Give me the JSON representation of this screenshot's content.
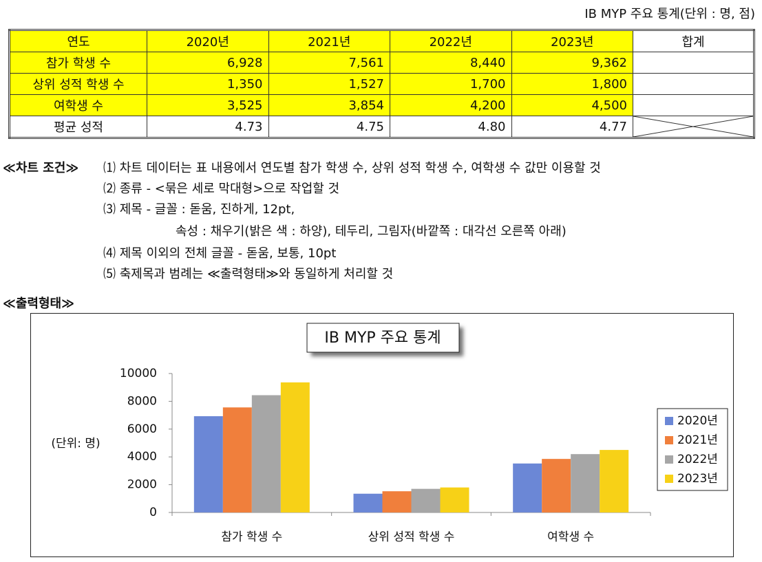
{
  "header": {
    "caption": "IB MYP 주요 통계(단위 : 명, 점)"
  },
  "table": {
    "header": [
      "연도",
      "2020년",
      "2021년",
      "2022년",
      "2023년",
      "합계"
    ],
    "rows": [
      [
        "참가 학생 수",
        "6,928",
        "7,561",
        "8,440",
        "9,362"
      ],
      [
        "상위 성적 학생 수",
        "1,350",
        "1,527",
        "1,700",
        "1,800"
      ],
      [
        "여학생 수",
        "3,525",
        "3,854",
        "4,200",
        "4,500"
      ],
      [
        "평균 성적",
        "4.73",
        "4.75",
        "4.80",
        "4.77"
      ]
    ]
  },
  "conditions": {
    "heading": "≪차트 조건≫",
    "lines": [
      "⑴ 차트 데이터는 표 내용에서 연도별 참가 학생 수, 상위 성적 학생 수, 여학생 수 값만 이용할 것",
      "⑵ 종류 - <묶은 세로 막대형>으로 작업할 것",
      "⑶ 제목 - 글꼴 : 돋움, 진하게, 12pt,",
      "속성 : 채우기(밝은 색 : 하양), 테두리, 그림자(바깥쪽 : 대각선 오른쪽 아래)",
      "⑷ 제목 이외의 전체 글꼴 - 돋움, 보통, 10pt",
      "⑸ 축제목과 범례는 ≪출력형태≫와 동일하게 처리할 것"
    ]
  },
  "output_heading": "≪출력형태≫",
  "chart_data": {
    "type": "bar",
    "title": "IB MYP 주요 통계",
    "y_label": "(단위: 명)",
    "categories": [
      "참가 학생 수",
      "상위 성적 학생 수",
      "여학생 수"
    ],
    "series": [
      {
        "name": "2020년",
        "color": "#6b87d6",
        "values": [
          6928,
          1350,
          3525
        ]
      },
      {
        "name": "2021년",
        "color": "#f07f3c",
        "values": [
          7561,
          1527,
          3854
        ]
      },
      {
        "name": "2022년",
        "color": "#a6a6a6",
        "values": [
          8440,
          1700,
          4200
        ]
      },
      {
        "name": "2023년",
        "color": "#f7d117",
        "values": [
          9362,
          1800,
          4500
        ]
      }
    ],
    "ylim": [
      0,
      10000
    ],
    "yticks": [
      0,
      2000,
      4000,
      6000,
      8000,
      10000
    ],
    "legend": "right"
  }
}
